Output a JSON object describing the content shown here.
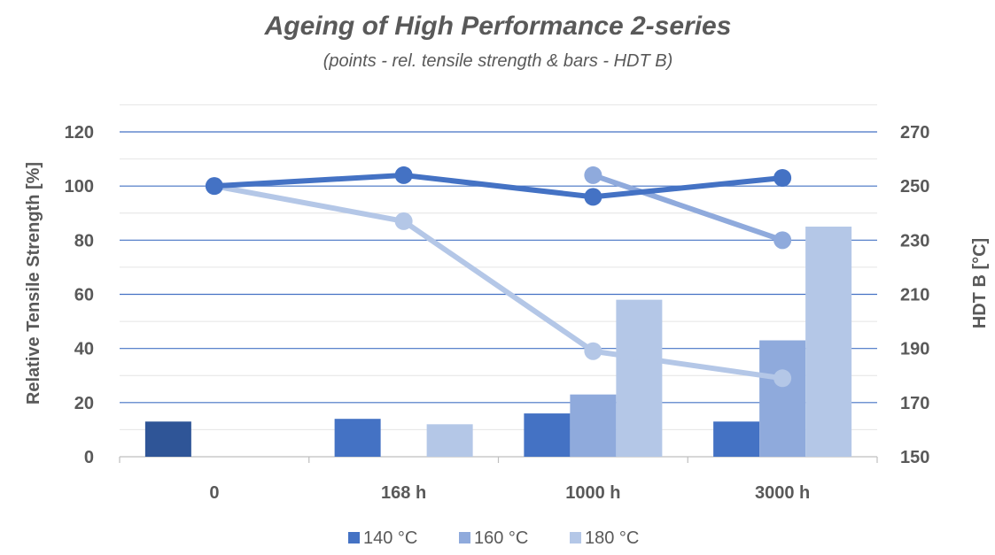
{
  "chart_data": {
    "type": "bar",
    "title": "Ageing of High Performance 2-series",
    "subtitle": "(points - rel. tensile strength & bars - HDT B)",
    "categories": [
      "0",
      "168 h",
      "1000 h",
      "3000 h"
    ],
    "ylabel": "Relative Tensile Strength [%]",
    "y2label": "HDT B [°C]",
    "ylim": [
      0,
      120
    ],
    "y2lim": [
      150,
      270
    ],
    "yticks": [
      "0",
      "20",
      "40",
      "60",
      "80",
      "100",
      "120"
    ],
    "y2ticks": [
      "150",
      "170",
      "190",
      "210",
      "230",
      "250",
      "270"
    ],
    "grid": true,
    "legend_position": "bottom",
    "bar_series": [
      {
        "name": "140 °C",
        "color": "#4472C4",
        "values": [
          163,
          164,
          166,
          163
        ]
      },
      {
        "name": "160 °C",
        "color": "#8FAADC",
        "values": [
          null,
          null,
          173,
          193
        ]
      },
      {
        "name": "180 °C",
        "color": "#B4C7E7",
        "values": [
          null,
          162,
          208,
          235
        ]
      }
    ],
    "bar_override_colors": {
      "0-0": "#2F5597"
    },
    "line_series": [
      {
        "name": "140 °C",
        "color": "#4472C4",
        "values": [
          100,
          104,
          96,
          103
        ]
      },
      {
        "name": "160 °C",
        "color": "#8FAADC",
        "values": [
          null,
          null,
          104,
          80
        ]
      },
      {
        "name": "180 °C",
        "color": "#B4C7E7",
        "values": [
          100,
          87,
          39,
          29
        ]
      }
    ]
  }
}
